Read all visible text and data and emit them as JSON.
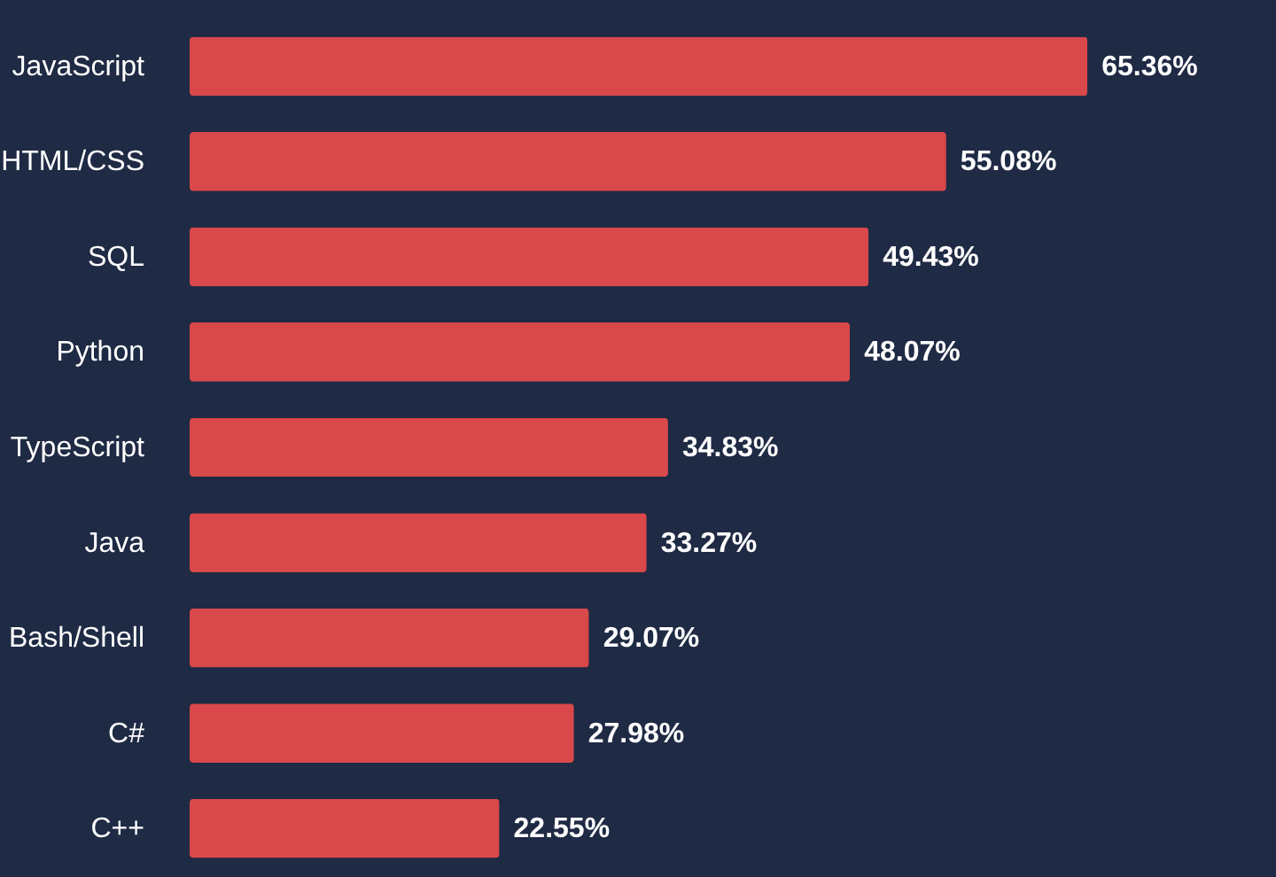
{
  "chart_data": {
    "type": "bar",
    "orientation": "horizontal",
    "data_labels": true,
    "categories": [
      "JavaScript",
      "HTML/CSS",
      "SQL",
      "Python",
      "TypeScript",
      "Java",
      "Bash/Shell",
      "C#",
      "C++"
    ],
    "values": [
      65.36,
      55.08,
      49.43,
      48.07,
      34.83,
      33.27,
      29.07,
      27.98,
      22.55
    ],
    "value_labels": [
      "65.36%",
      "55.08%",
      "49.43%",
      "48.07%",
      "34.83%",
      "33.27%",
      "29.07%",
      "27.98%",
      "22.55%"
    ],
    "color": "#d9484a"
  }
}
